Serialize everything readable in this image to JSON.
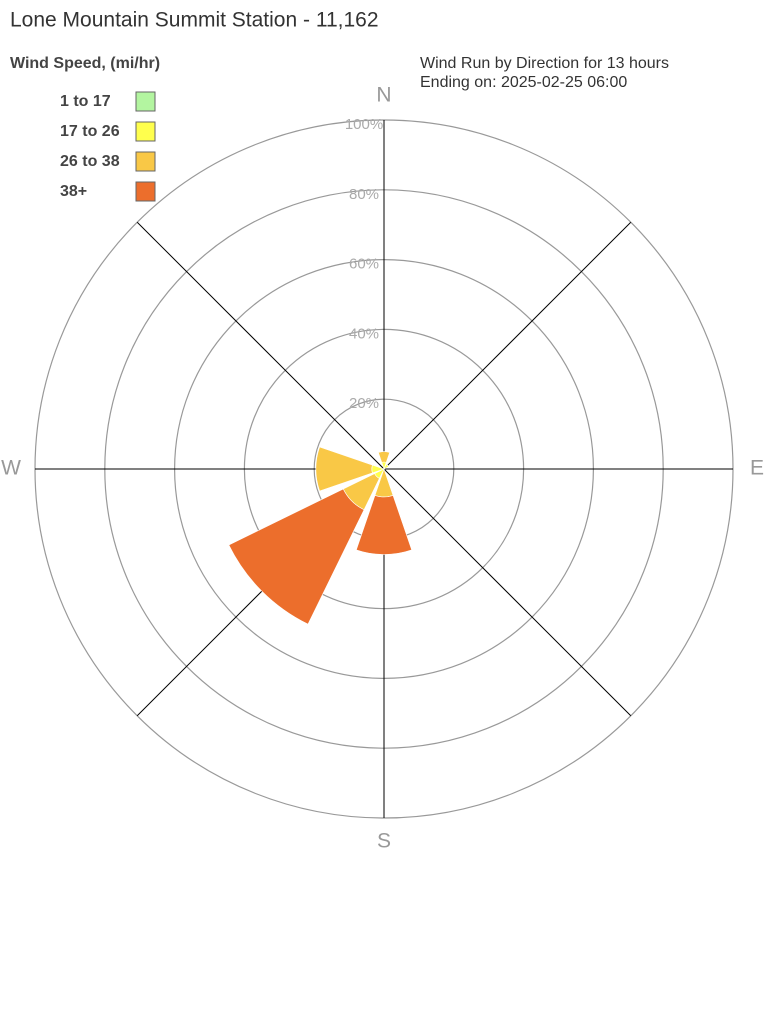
{
  "chart_data": {
    "type": "windrose",
    "title": "Lone Mountain Summit Station - 11,162",
    "legend_title": "Wind Speed, (mi/hr)",
    "subtitle": "Wind Run by Direction for 13 hours",
    "subtitle2": "Ending on: 2025-02-25 06:00",
    "categories": [
      "N",
      null,
      "E",
      null,
      "S",
      null,
      "W",
      null
    ],
    "series": [
      {
        "name": "1 to 17",
        "color": "#b3f5a0",
        "values": [
          0,
          0,
          0,
          0,
          0,
          0,
          0,
          0
        ]
      },
      {
        "name": "17 to 26",
        "color": "#ffff4d",
        "values": [
          2,
          1.5,
          0,
          0,
          0,
          3,
          3.5,
          0
        ]
      },
      {
        "name": "26 to 38",
        "color": "#f9c846",
        "values": [
          3,
          0,
          0,
          0,
          8,
          10,
          16,
          0
        ]
      },
      {
        "name": "38+",
        "color": "#ec6e2c",
        "values": [
          0,
          0,
          0,
          0,
          16.5,
          36.5,
          0,
          0
        ]
      }
    ],
    "rlim": [
      0,
      100
    ],
    "rticks": [
      {
        "value": 20,
        "label": "20%"
      },
      {
        "value": 40,
        "label": "40%"
      },
      {
        "value": 60,
        "label": "60%"
      },
      {
        "value": 80,
        "label": "80%"
      },
      {
        "value": 100,
        "label": "100%"
      }
    ]
  }
}
